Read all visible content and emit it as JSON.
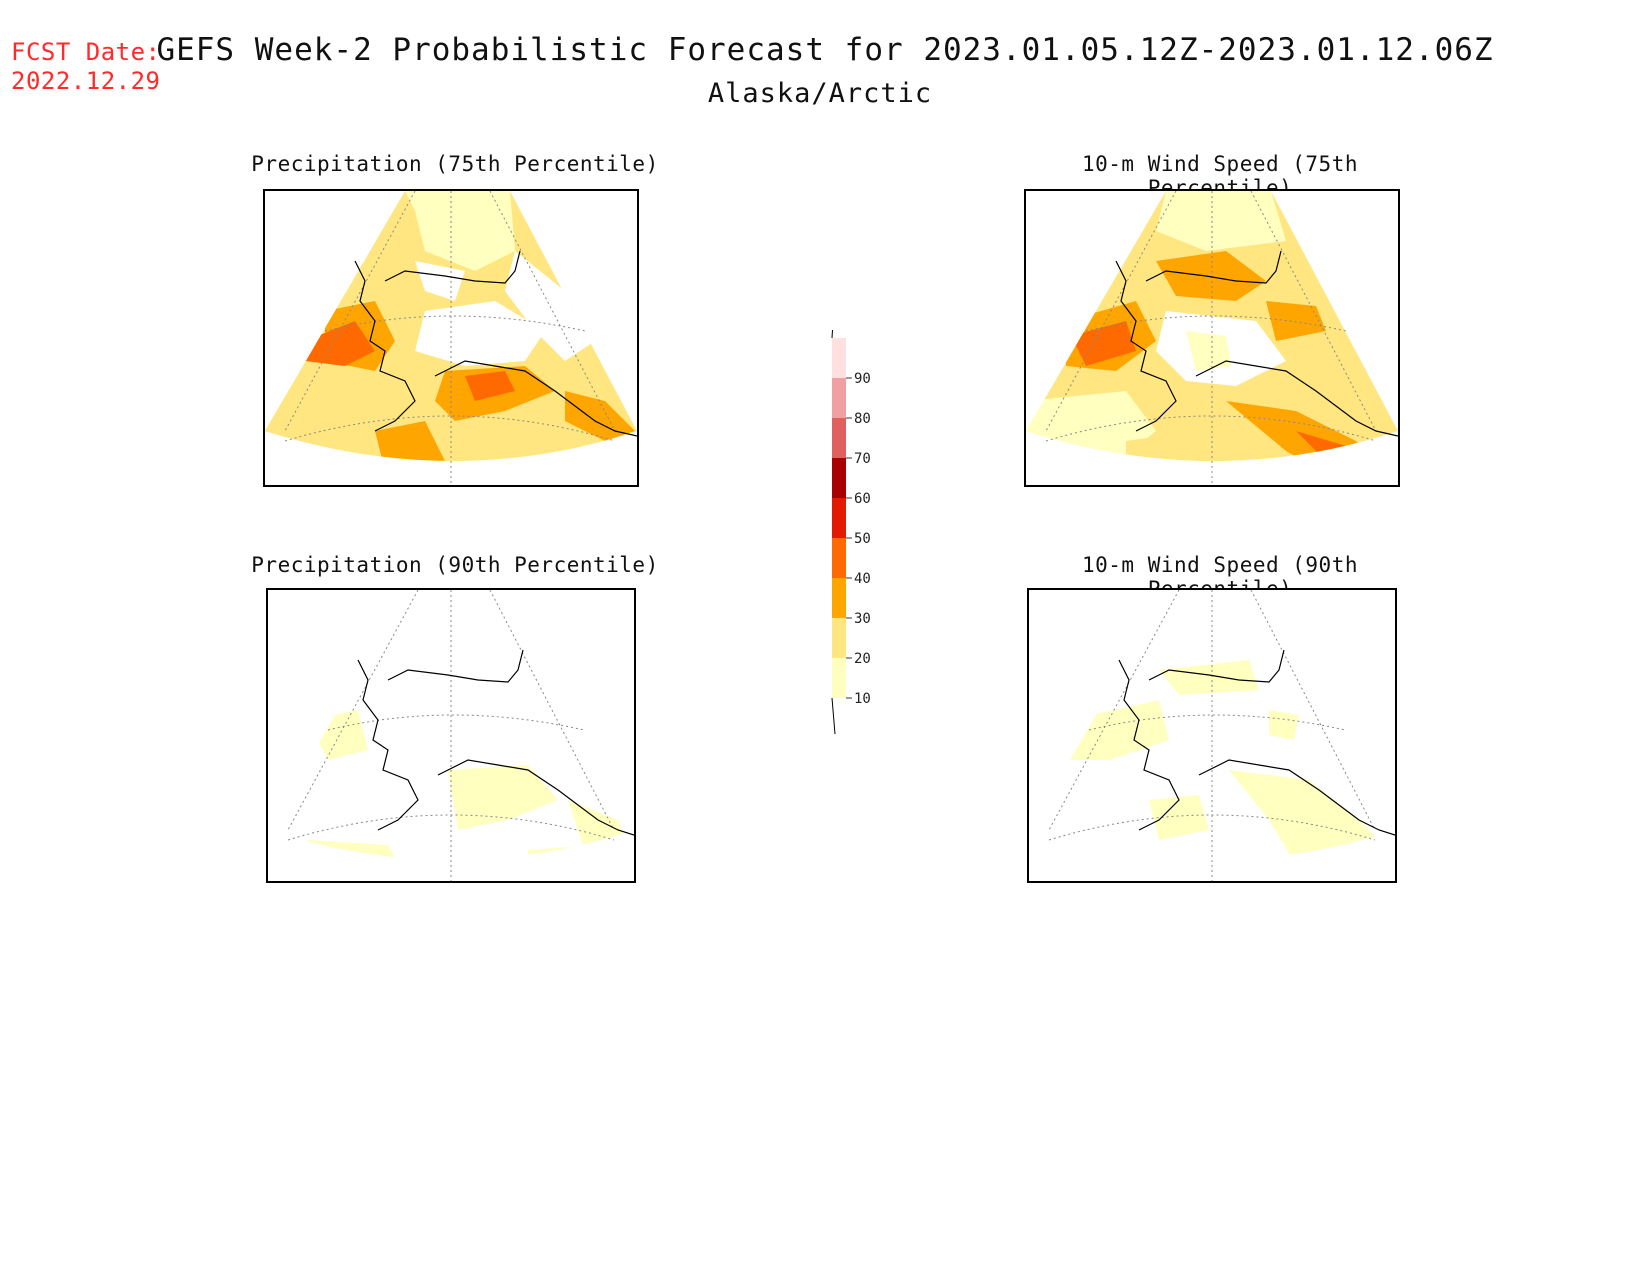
{
  "fcst_date": {
    "label": "FCST Date:",
    "value": "2022.12.29"
  },
  "title": "GEFS Week-2 Probabilistic Forecast for 2023.01.05.12Z-2023.01.12.06Z",
  "subtitle": "Alaska/Arctic",
  "panels": [
    {
      "title": "Precipitation (75th Percentile)"
    },
    {
      "title": "10-m Wind Speed (75th Percentile)"
    },
    {
      "title": "Precipitation (90th Percentile)"
    },
    {
      "title": "10-m Wind Speed (90th Percentile)"
    }
  ],
  "colorbar": {
    "levels": [
      "10",
      "20",
      "30",
      "40",
      "50",
      "60",
      "70",
      "80",
      "90"
    ],
    "colors": [
      "#ffffc0",
      "#ffe680",
      "#ffa500",
      "#ff6a00",
      "#e31a00",
      "#a80000",
      "#e06060",
      "#f0a0a0",
      "#ffe0e0"
    ]
  }
}
